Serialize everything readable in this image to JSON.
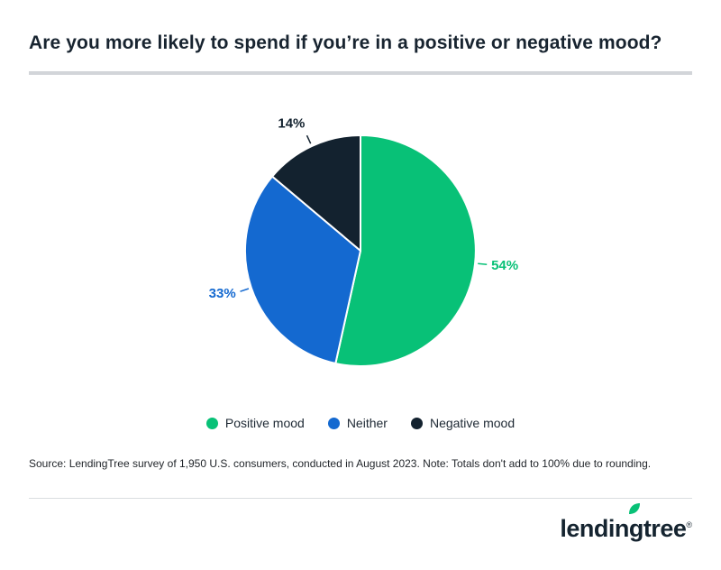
{
  "page": {
    "title": "Are you more likely to spend if you’re in a positive or negative mood?",
    "source_note": "Source: LendingTree survey of 1,950 U.S. consumers, conducted in August 2023. Note: Totals don't add to 100% due to rounding."
  },
  "brand": {
    "logo_text": "lendingtree",
    "registered": "®",
    "leaf_color": "#08c177",
    "text_color": "#152430"
  },
  "colors": {
    "accent_green": "#08c177",
    "accent_blue": "#1469d0",
    "dark_navy": "#13222f",
    "divider_thick": "#d2d5d9",
    "divider_thin": "#dadde0"
  },
  "chart_data": {
    "type": "pie",
    "title": "Are you more likely to spend if you’re in a positive or negative mood?",
    "legend_position": "bottom",
    "start_angle_deg": 0,
    "direction": "clockwise",
    "slices": [
      {
        "label": "Positive mood",
        "value": 54,
        "display": "54%",
        "color": "#08c177"
      },
      {
        "label": "Neither",
        "value": 33,
        "display": "33%",
        "color": "#1469d0"
      },
      {
        "label": "Negative mood",
        "value": 14,
        "display": "14%",
        "color": "#13222f"
      }
    ]
  }
}
